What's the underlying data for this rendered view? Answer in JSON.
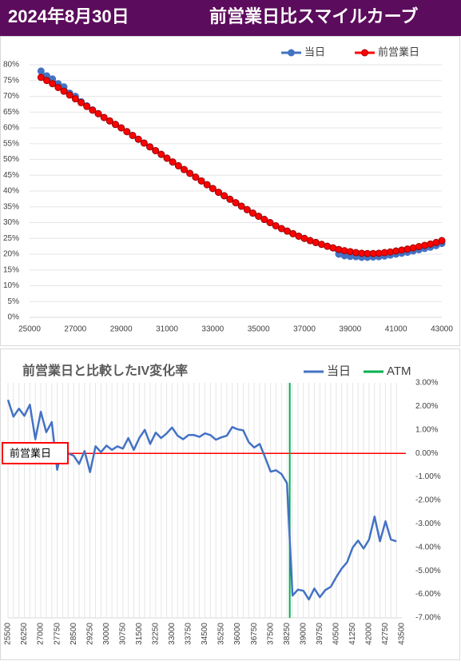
{
  "header": {
    "date": "2024年8月30日",
    "title": "前営業日比スマイルカーブ"
  },
  "chart_data": [
    {
      "type": "line",
      "markers": true,
      "grid": "y",
      "y_axis_side": "left",
      "legend": "top-right",
      "x": [
        25500,
        25750,
        26000,
        26250,
        26500,
        26750,
        27000,
        27250,
        27500,
        27750,
        28000,
        28250,
        28500,
        28750,
        29000,
        29250,
        29500,
        29750,
        30000,
        30250,
        30500,
        30750,
        31000,
        31250,
        31500,
        31750,
        32000,
        32250,
        32500,
        32750,
        33000,
        33250,
        33500,
        33750,
        34000,
        34250,
        34500,
        34750,
        35000,
        35250,
        35500,
        35750,
        36000,
        36250,
        36500,
        36750,
        37000,
        37250,
        37500,
        37750,
        38000,
        38250,
        38500,
        38750,
        39000,
        39250,
        39500,
        39750,
        40000,
        40250,
        40500,
        40750,
        41000,
        41250,
        41500,
        41750,
        42000,
        42250,
        42500,
        42750,
        43000
      ],
      "series": [
        {
          "name": "当日",
          "color": "#4472c4",
          "values": [
            78,
            76.5,
            75.5,
            74,
            73,
            71,
            70,
            68.3,
            67,
            65.7,
            64.5,
            63.3,
            62.2,
            61.1,
            60,
            58.8,
            57.6,
            56.4,
            55.2,
            54,
            52.8,
            51.6,
            50.4,
            49.2,
            48,
            46.8,
            45.6,
            44.4,
            43.2,
            42,
            40.8,
            39.6,
            38.5,
            37.4,
            36.3,
            35.2,
            34.1,
            33,
            32,
            31,
            30,
            29,
            28.1,
            27.3,
            26.5,
            25.7,
            25,
            24.3,
            23.7,
            23.1,
            22.5,
            22,
            20,
            19.5,
            19.3,
            19.2,
            19,
            19,
            19.1,
            19.2,
            19.4,
            19.7,
            20,
            20.3,
            20.6,
            21,
            21.4,
            21.8,
            22.2,
            22.7,
            23.4
          ]
        },
        {
          "name": "前営業日",
          "color": "#ff0000",
          "values": [
            76,
            75,
            74,
            72.8,
            71.6,
            70.4,
            69.2,
            68,
            66.8,
            65.6,
            64.5,
            63.3,
            62.2,
            61.1,
            60,
            58.8,
            57.6,
            56.4,
            55.2,
            54,
            52.8,
            51.6,
            50.4,
            49.2,
            48,
            46.8,
            45.6,
            44.4,
            43.2,
            42,
            40.8,
            39.6,
            38.5,
            37.4,
            36.3,
            35.2,
            34.1,
            33,
            32,
            31,
            30,
            29,
            28.1,
            27.3,
            26.5,
            25.7,
            25,
            24.3,
            23.7,
            23.1,
            22.5,
            22,
            21.5,
            21.1,
            20.8,
            20.5,
            20.3,
            20.2,
            20.2,
            20.3,
            20.5,
            20.7,
            21,
            21.3,
            21.6,
            22,
            22.4,
            22.8,
            23.2,
            23.7,
            24.3
          ]
        }
      ],
      "xlim": [
        25000,
        43000
      ],
      "xticks": [
        25000,
        27000,
        29000,
        31000,
        33000,
        35000,
        37000,
        39000,
        41000,
        43000
      ],
      "ylim": [
        0,
        80
      ],
      "yticks": [
        {
          "value": 0,
          "label": "0%"
        },
        {
          "value": 5,
          "label": "5%"
        },
        {
          "value": 10,
          "label": "10%"
        },
        {
          "value": 15,
          "label": "15%"
        },
        {
          "value": 20,
          "label": "20%"
        },
        {
          "value": 25,
          "label": "25%"
        },
        {
          "value": 30,
          "label": "30%"
        },
        {
          "value": 35,
          "label": "35%"
        },
        {
          "value": 40,
          "label": "40%"
        },
        {
          "value": 45,
          "label": "45%"
        },
        {
          "value": 50,
          "label": "50%"
        },
        {
          "value": 55,
          "label": "55%"
        },
        {
          "value": 60,
          "label": "60%"
        },
        {
          "value": 65,
          "label": "65%"
        },
        {
          "value": 70,
          "label": "70%"
        },
        {
          "value": 75,
          "label": "75%"
        },
        {
          "value": 80,
          "label": "80%"
        }
      ]
    },
    {
      "type": "line",
      "markers": false,
      "grid": "x",
      "y_axis_side": "right",
      "legend": "top-right",
      "title": "前営業日と比較したIV変化率",
      "x": [
        25500,
        25750,
        26000,
        26250,
        26500,
        26750,
        27000,
        27250,
        27500,
        27750,
        28000,
        28250,
        28500,
        28750,
        29000,
        29250,
        29500,
        29750,
        30000,
        30250,
        30500,
        30750,
        31000,
        31250,
        31500,
        31750,
        32000,
        32250,
        32500,
        32750,
        33000,
        33250,
        33500,
        33750,
        34000,
        34250,
        34500,
        34750,
        35000,
        35250,
        35500,
        35750,
        36000,
        36250,
        36500,
        36750,
        37000,
        37250,
        37500,
        37750,
        38000,
        38250,
        38500,
        38750,
        39000,
        39250,
        39500,
        39750,
        40000,
        40250,
        40500,
        40750,
        41000,
        41250,
        41500,
        41750,
        42000,
        42250,
        42500,
        42750,
        43000,
        43250
      ],
      "series": [
        {
          "name": "当日",
          "color": "#4472c4",
          "values": [
            2.28,
            1.56,
            1.9,
            1.6,
            2.07,
            0.6,
            1.77,
            0.9,
            1.33,
            -0.7,
            0.45,
            0,
            -0.1,
            -0.45,
            0.1,
            -0.8,
            0.3,
            0.05,
            0.33,
            0.15,
            0.3,
            0.2,
            0.65,
            0.15,
            0.65,
            1.0,
            0.4,
            0.88,
            0.65,
            0.85,
            1.1,
            0.75,
            0.6,
            0.78,
            0.78,
            0.7,
            0.85,
            0.78,
            0.58,
            0.68,
            0.75,
            1.12,
            1.02,
            0.98,
            0.48,
            0.25,
            0.4,
            -0.17,
            -0.78,
            -0.72,
            -0.88,
            -1.27,
            -6.05,
            -5.8,
            -5.85,
            -6.22,
            -5.75,
            -6.12,
            -5.82,
            -5.68,
            -5.27,
            -4.9,
            -4.63,
            -4.01,
            -3.71,
            -4.05,
            -3.67,
            -2.69,
            -3.74,
            -2.89,
            -3.67,
            -3.74
          ]
        }
      ],
      "atm": {
        "name": "ATM",
        "color": "#00b050",
        "x": 38375
      },
      "reference": {
        "label": "前営業日",
        "value": 0,
        "color": "#ff0000"
      },
      "xlim": [
        25500,
        43500
      ],
      "xticks": [
        25500,
        26250,
        27000,
        27750,
        28500,
        29250,
        30000,
        30750,
        31500,
        32250,
        33000,
        33750,
        34500,
        35250,
        36000,
        36750,
        37500,
        38250,
        39000,
        39750,
        40500,
        41250,
        42000,
        42750,
        43500
      ],
      "ylim": [
        -7,
        3
      ],
      "yticks": [
        {
          "value": 3,
          "label": "3.00%"
        },
        {
          "value": 2,
          "label": "2.00%"
        },
        {
          "value": 1,
          "label": "1.00%"
        },
        {
          "value": 0,
          "label": "0.00%"
        },
        {
          "value": -1,
          "label": "-1.00%"
        },
        {
          "value": -2,
          "label": "-2.00%"
        },
        {
          "value": -3,
          "label": "-3.00%"
        },
        {
          "value": -4,
          "label": "-4.00%"
        },
        {
          "value": -5,
          "label": "-5.00%"
        },
        {
          "value": -6,
          "label": "-6.00%"
        },
        {
          "value": -7,
          "label": "-7.00%"
        }
      ]
    }
  ]
}
